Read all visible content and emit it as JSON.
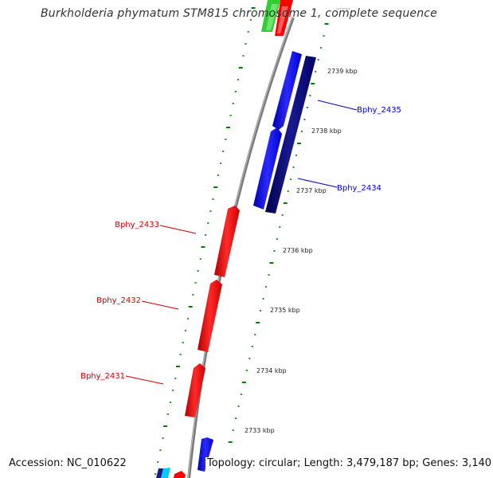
{
  "title": "Burkholderia phymatum STM815 chromosome 1, complete sequence",
  "accession": "Accession: NC_010622",
  "topology": "Topology: circular; Length: 3,479,187 bp; Genes: 3,140",
  "ticks": [
    "2739 kbp",
    "2738 kbp",
    "2737 kbp",
    "2736 kbp",
    "2735 kbp",
    "2734 kbp",
    "2733 kbp"
  ],
  "genes": {
    "reverse": [
      {
        "label": "Bphy_2431"
      },
      {
        "label": "Bphy_2432"
      },
      {
        "label": "Bphy_2433"
      }
    ],
    "forward": [
      {
        "label": "Bphy_2434"
      },
      {
        "label": "Bphy_2435"
      }
    ]
  },
  "colors": {
    "reverse_gene": "#ff0000",
    "forward_gene": "#0000ff",
    "forward_gene_dark": "#000080",
    "ticks": "#008000",
    "backbone": "#808080",
    "other_gene": "#33cc33"
  }
}
